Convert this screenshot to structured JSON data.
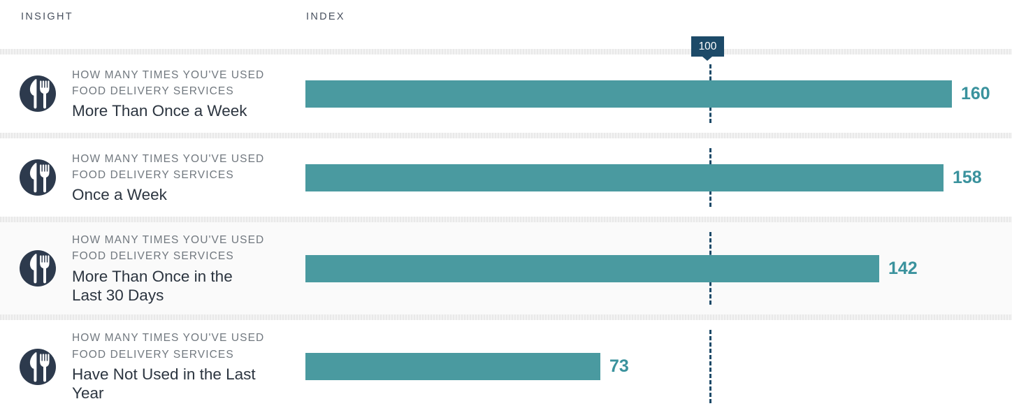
{
  "header": {
    "insight_label": "INSIGHT",
    "index_label": "INDEX"
  },
  "reference": {
    "label": "100",
    "value": 100
  },
  "rows": [
    {
      "category": "HOW MANY TIMES YOU'VE USED\nFOOD DELIVERY SERVICES",
      "label": "More Than Once a Week",
      "value": 160,
      "shaded": false
    },
    {
      "category": "HOW MANY TIMES YOU'VE USED\nFOOD DELIVERY SERVICES",
      "label": "Once a Week",
      "value": 158,
      "shaded": false
    },
    {
      "category": "HOW MANY TIMES YOU'VE USED\nFOOD DELIVERY SERVICES",
      "label": "More Than Once in the\nLast 30 Days",
      "value": 142,
      "shaded": true
    },
    {
      "category": "HOW MANY TIMES YOU'VE USED\nFOOD DELIVERY SERVICES",
      "label": "Have Not Used in the Last\nYear",
      "value": 73,
      "shaded": false
    }
  ],
  "icons": {
    "row_icon": "fork-and-knife-icon"
  },
  "colors": {
    "bar": "#4a9aa0",
    "value_text": "#3a929d",
    "reference_line": "#1d4a68",
    "icon_background": "#2d3a4d",
    "label_text": "#2c3540",
    "category_text": "#71787f",
    "divider": "#ececec",
    "shaded_row_background": "#fafafa",
    "header_text": "#48505e"
  },
  "chart_data": {
    "type": "bar",
    "orientation": "horizontal",
    "title": "",
    "category_axis_label": "INSIGHT",
    "value_axis_label": "INDEX",
    "group_label": "HOW MANY TIMES YOU'VE USED FOOD DELIVERY SERVICES",
    "categories": [
      "More Than Once a Week",
      "Once a Week",
      "More Than Once in the Last 30 Days",
      "Have Not Used in the Last Year"
    ],
    "values": [
      160,
      158,
      142,
      73
    ],
    "reference_line": 100,
    "xlim": [
      0,
      175
    ],
    "grid": false,
    "legend": false
  }
}
